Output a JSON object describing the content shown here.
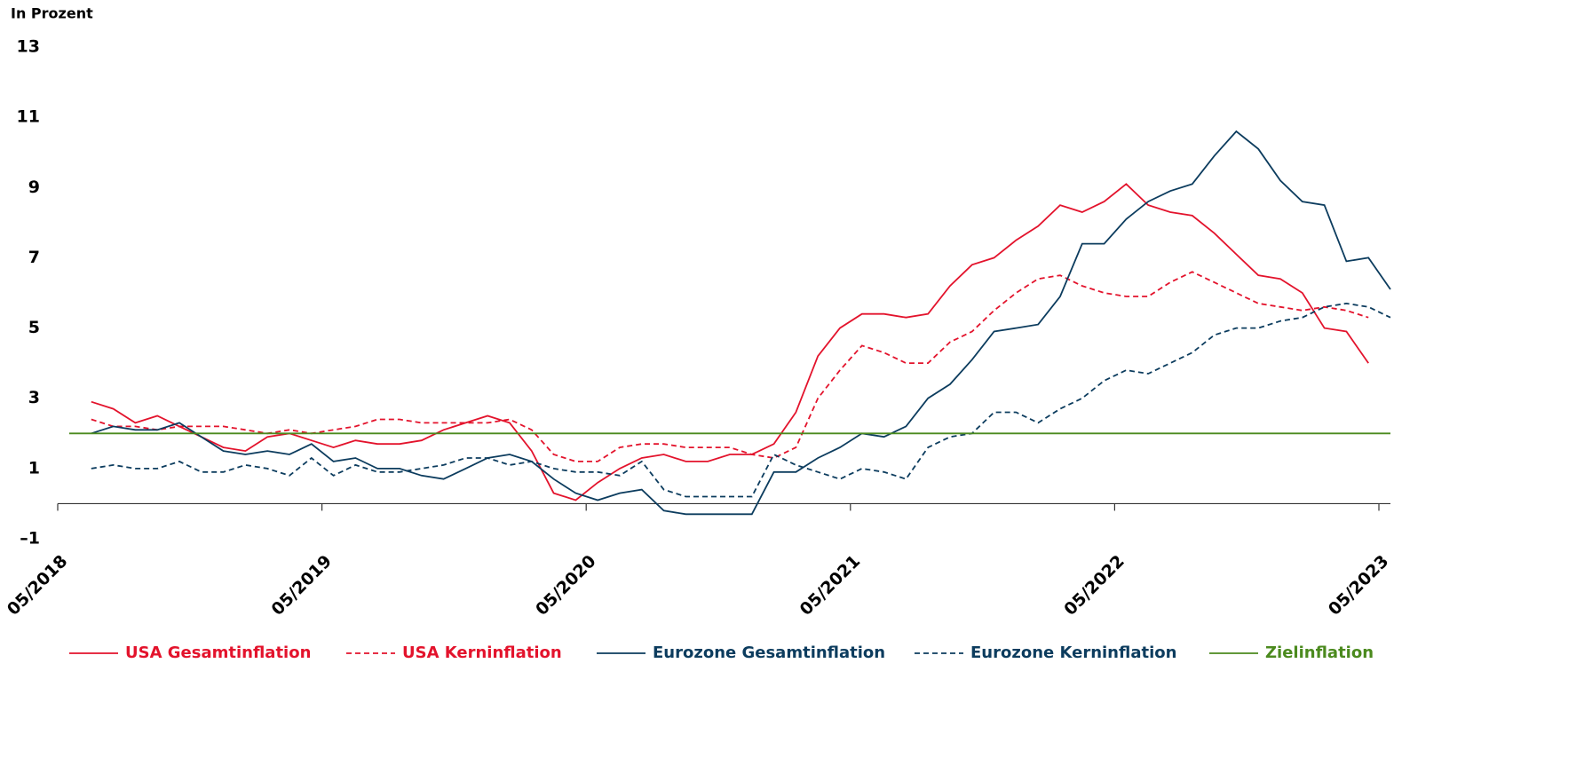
{
  "chart_data": {
    "type": "line",
    "y_axis_label": "In Prozent",
    "categories": [
      "05/2018",
      null,
      null,
      null,
      null,
      null,
      null,
      null,
      null,
      null,
      null,
      null,
      "05/2019",
      null,
      null,
      null,
      null,
      null,
      null,
      null,
      null,
      null,
      null,
      null,
      "05/2020",
      null,
      null,
      null,
      null,
      null,
      null,
      null,
      null,
      null,
      null,
      null,
      "05/2021",
      null,
      null,
      null,
      null,
      null,
      null,
      null,
      null,
      null,
      null,
      null,
      "05/2022",
      null,
      null,
      null,
      null,
      null,
      null,
      null,
      null,
      null,
      null,
      null,
      "05/2023"
    ],
    "ylim": [
      -1,
      13
    ],
    "yticks": [
      {
        "value": -1,
        "label": "–1"
      },
      1,
      3,
      5,
      7,
      9,
      11,
      13
    ],
    "legend": "bottom",
    "series": [
      {
        "name": "USA Gesamtinflation",
        "color": "#e3132c",
        "dash": false,
        "values": [
          null,
          2.9,
          2.7,
          2.3,
          2.5,
          2.2,
          1.9,
          1.6,
          1.5,
          1.9,
          2.0,
          1.8,
          1.6,
          1.8,
          1.7,
          1.7,
          1.8,
          2.1,
          2.3,
          2.5,
          2.3,
          1.5,
          0.3,
          0.1,
          0.6,
          1.0,
          1.3,
          1.4,
          1.2,
          1.2,
          1.4,
          1.4,
          1.7,
          2.6,
          4.2,
          5.0,
          5.4,
          5.4,
          5.3,
          5.4,
          6.2,
          6.8,
          7.0,
          7.5,
          7.9,
          8.5,
          8.3,
          8.6,
          9.1,
          8.5,
          8.3,
          8.2,
          7.7,
          7.1,
          6.5,
          6.4,
          6.0,
          5.0,
          4.9,
          4.0,
          null
        ]
      },
      {
        "name": "USA Kerninflation",
        "color": "#e3132c",
        "dash": true,
        "values": [
          null,
          2.4,
          2.2,
          2.2,
          2.1,
          2.2,
          2.2,
          2.2,
          2.1,
          2.0,
          2.1,
          2.0,
          2.1,
          2.2,
          2.4,
          2.4,
          2.3,
          2.3,
          2.3,
          2.3,
          2.4,
          2.1,
          1.4,
          1.2,
          1.2,
          1.6,
          1.7,
          1.7,
          1.6,
          1.6,
          1.6,
          1.4,
          1.3,
          1.6,
          3.0,
          3.8,
          4.5,
          4.3,
          4.0,
          4.0,
          4.6,
          4.9,
          5.5,
          6.0,
          6.4,
          6.5,
          6.2,
          6.0,
          5.9,
          5.9,
          6.3,
          6.6,
          6.3,
          6.0,
          5.7,
          5.6,
          5.5,
          5.6,
          5.5,
          5.3,
          null
        ]
      },
      {
        "name": "Eurozone Gesamtinflation",
        "color": "#0c3c5e",
        "dash": false,
        "values": [
          null,
          2.0,
          2.2,
          2.1,
          2.1,
          2.3,
          1.9,
          1.5,
          1.4,
          1.5,
          1.4,
          1.7,
          1.2,
          1.3,
          1.0,
          1.0,
          0.8,
          0.7,
          1.0,
          1.3,
          1.4,
          1.2,
          0.7,
          0.3,
          0.1,
          0.3,
          0.4,
          -0.2,
          -0.3,
          -0.3,
          -0.3,
          -0.3,
          0.9,
          0.9,
          1.3,
          1.6,
          2.0,
          1.9,
          2.2,
          3.0,
          3.4,
          4.1,
          4.9,
          5.0,
          5.1,
          5.9,
          7.4,
          7.4,
          8.1,
          8.6,
          8.9,
          9.1,
          9.9,
          10.6,
          10.1,
          9.2,
          8.6,
          8.5,
          6.9,
          7.0,
          6.1
        ]
      },
      {
        "name": "Eurozone Kerninflation",
        "color": "#0c3c5e",
        "dash": true,
        "values": [
          null,
          1.0,
          1.1,
          1.0,
          1.0,
          1.2,
          0.9,
          0.9,
          1.1,
          1.0,
          0.8,
          1.3,
          0.8,
          1.1,
          0.9,
          0.9,
          1.0,
          1.1,
          1.3,
          1.3,
          1.1,
          1.2,
          1.0,
          0.9,
          0.9,
          0.8,
          1.2,
          0.4,
          0.2,
          0.2,
          0.2,
          0.2,
          1.4,
          1.1,
          0.9,
          0.7,
          1.0,
          0.9,
          0.7,
          1.6,
          1.9,
          2.0,
          2.6,
          2.6,
          2.3,
          2.7,
          3.0,
          3.5,
          3.8,
          3.7,
          4.0,
          4.3,
          4.8,
          5.0,
          5.0,
          5.2,
          5.3,
          5.6,
          5.7,
          5.6,
          5.3
        ]
      },
      {
        "name": "Zielinflation",
        "color": "#4b8a1e",
        "dash": false,
        "values": [
          2,
          2,
          2,
          2,
          2,
          2,
          2,
          2,
          2,
          2,
          2,
          2,
          2,
          2,
          2,
          2,
          2,
          2,
          2,
          2,
          2,
          2,
          2,
          2,
          2,
          2,
          2,
          2,
          2,
          2,
          2,
          2,
          2,
          2,
          2,
          2,
          2,
          2,
          2,
          2,
          2,
          2,
          2,
          2,
          2,
          2,
          2,
          2,
          2,
          2,
          2,
          2,
          2,
          2,
          2,
          2,
          2,
          2,
          2,
          2,
          2
        ]
      }
    ]
  }
}
